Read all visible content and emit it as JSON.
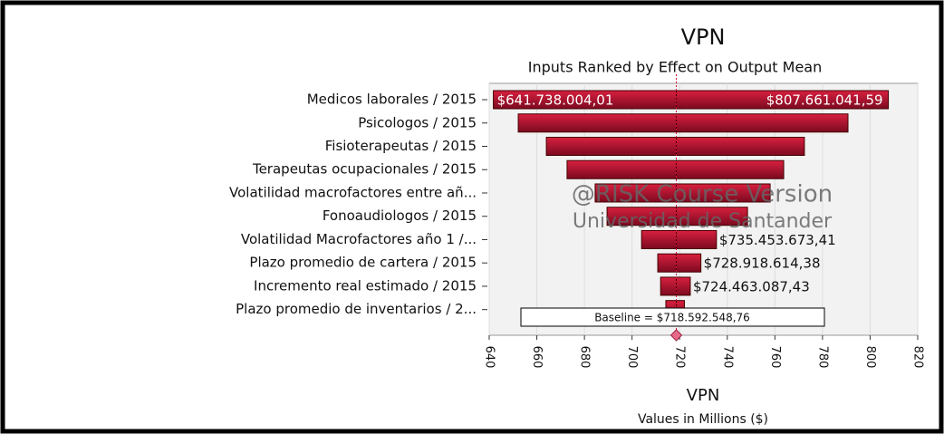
{
  "chart_data": {
    "type": "tornado",
    "title": "VPN",
    "subtitle": "Inputs Ranked by Effect on Output  Mean",
    "x_axis_title": "VPN",
    "x_axis_subtitle": "Values in Millions ($)",
    "categories": [
      "Medicos laborales / 2015",
      "Psicologos / 2015",
      "Fisioterapeutas / 2015",
      "Terapeutas ocupacionales / 2015",
      "Volatilidad macrofactores entre añ...",
      "Fonoaudiologos / 2015",
      "Volatilidad Macrofactores año 1 /...",
      "Plazo promedio de cartera / 2015",
      "Incremento real estimado / 2015",
      "Plazo promedio de inventarios / 2..."
    ],
    "low_values": [
      641.73800401,
      652.2,
      664,
      672.7,
      684.5,
      689.5,
      704,
      710.8,
      712,
      714.2
    ],
    "high_values": [
      807.66104159,
      790.7,
      772.4,
      763.7,
      758,
      748.5,
      735.45367341,
      728.91861438,
      724.46308743,
      722
    ],
    "low_value_labels": [
      "$641.738.004,01",
      null,
      null,
      null,
      null,
      null,
      null,
      null,
      null,
      null
    ],
    "high_value_labels": [
      "$807.661.041,59",
      null,
      null,
      null,
      null,
      null,
      "$735.453.673,41",
      "$728.918.614,38",
      "$724.463.087,43",
      null
    ],
    "baseline": 718.59254876,
    "baseline_label": "Baseline = $718.592.548,76",
    "watermark": [
      "@RISK Course Version",
      "Universidad de Santander"
    ],
    "color": "#b0102e",
    "xlim": [
      640,
      820
    ],
    "xticks": [
      640,
      660,
      680,
      700,
      720,
      740,
      760,
      780,
      800,
      820
    ],
    "grid": true
  }
}
